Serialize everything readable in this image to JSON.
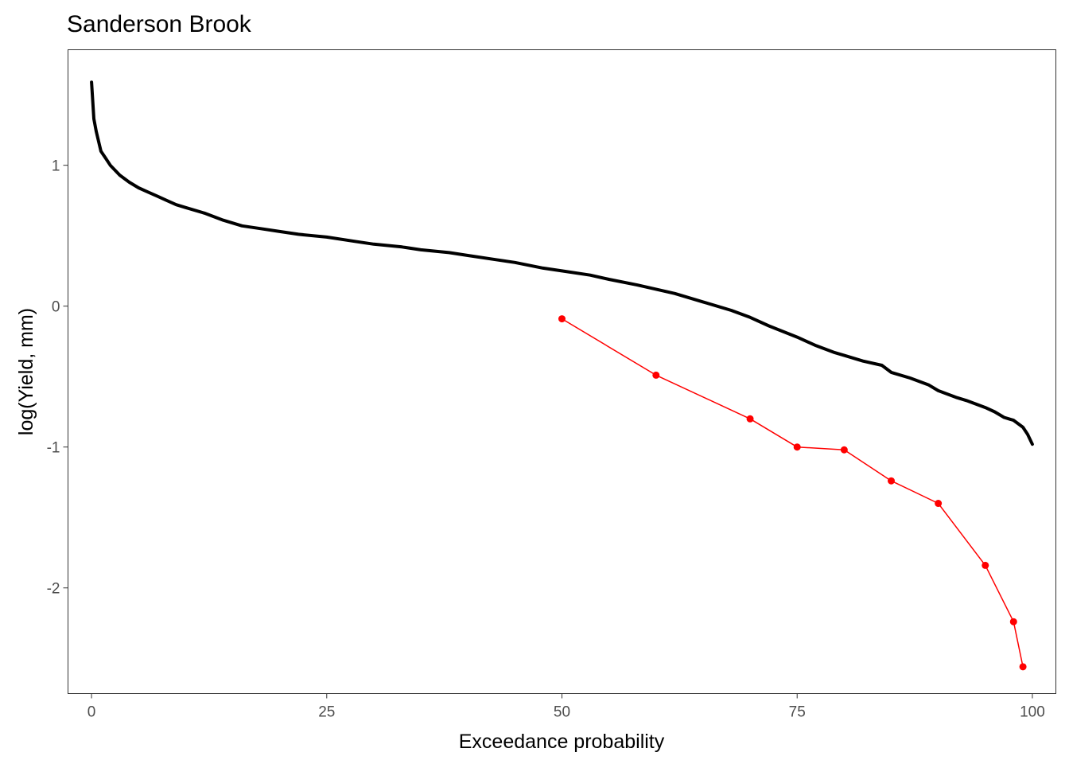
{
  "chart_data": {
    "type": "line",
    "title": "Sanderson Brook",
    "xlabel": "Exceedance probability",
    "ylabel": "log(Yield, mm)",
    "xlim": [
      -2.5,
      102.5
    ],
    "ylim": [
      -2.75,
      1.82
    ],
    "x_ticks": [
      0,
      25,
      50,
      75,
      100
    ],
    "y_ticks": [
      -2,
      -1,
      0,
      1
    ],
    "grid": false,
    "legend": "none",
    "series": [
      {
        "color": "#000000",
        "style": "thick-line",
        "x": [
          0,
          0.25,
          0.5,
          1,
          1.5,
          2,
          3,
          4,
          5,
          6,
          7,
          8,
          9,
          10,
          12,
          14,
          16,
          18,
          20,
          22,
          25,
          28,
          30,
          33,
          35,
          38,
          40,
          43,
          45,
          48,
          50,
          53,
          55,
          58,
          60,
          62,
          65,
          68,
          70,
          72,
          75,
          77,
          79,
          80,
          82,
          84,
          85,
          87,
          89,
          90,
          92,
          93,
          95,
          96,
          97,
          98,
          99,
          99.5,
          100
        ],
        "y": [
          1.59,
          1.33,
          1.24,
          1.1,
          1.05,
          1.0,
          0.93,
          0.88,
          0.84,
          0.81,
          0.78,
          0.75,
          0.72,
          0.7,
          0.66,
          0.61,
          0.57,
          0.55,
          0.53,
          0.51,
          0.49,
          0.46,
          0.44,
          0.42,
          0.4,
          0.38,
          0.36,
          0.33,
          0.31,
          0.27,
          0.25,
          0.22,
          0.19,
          0.15,
          0.12,
          0.09,
          0.03,
          -0.03,
          -0.08,
          -0.14,
          -0.22,
          -0.28,
          -0.33,
          -0.35,
          -0.39,
          -0.42,
          -0.47,
          -0.51,
          -0.56,
          -0.6,
          -0.65,
          -0.67,
          -0.72,
          -0.75,
          -0.79,
          -0.81,
          -0.86,
          -0.91,
          -0.98
        ]
      },
      {
        "color": "#ff0000",
        "style": "line-points",
        "x": [
          50,
          60,
          70,
          75,
          80,
          85,
          90,
          95,
          98,
          99
        ],
        "y": [
          -0.09,
          -0.49,
          -0.8,
          -1.0,
          -1.02,
          -1.24,
          -1.4,
          -1.84,
          -2.24,
          -2.56
        ]
      }
    ]
  }
}
